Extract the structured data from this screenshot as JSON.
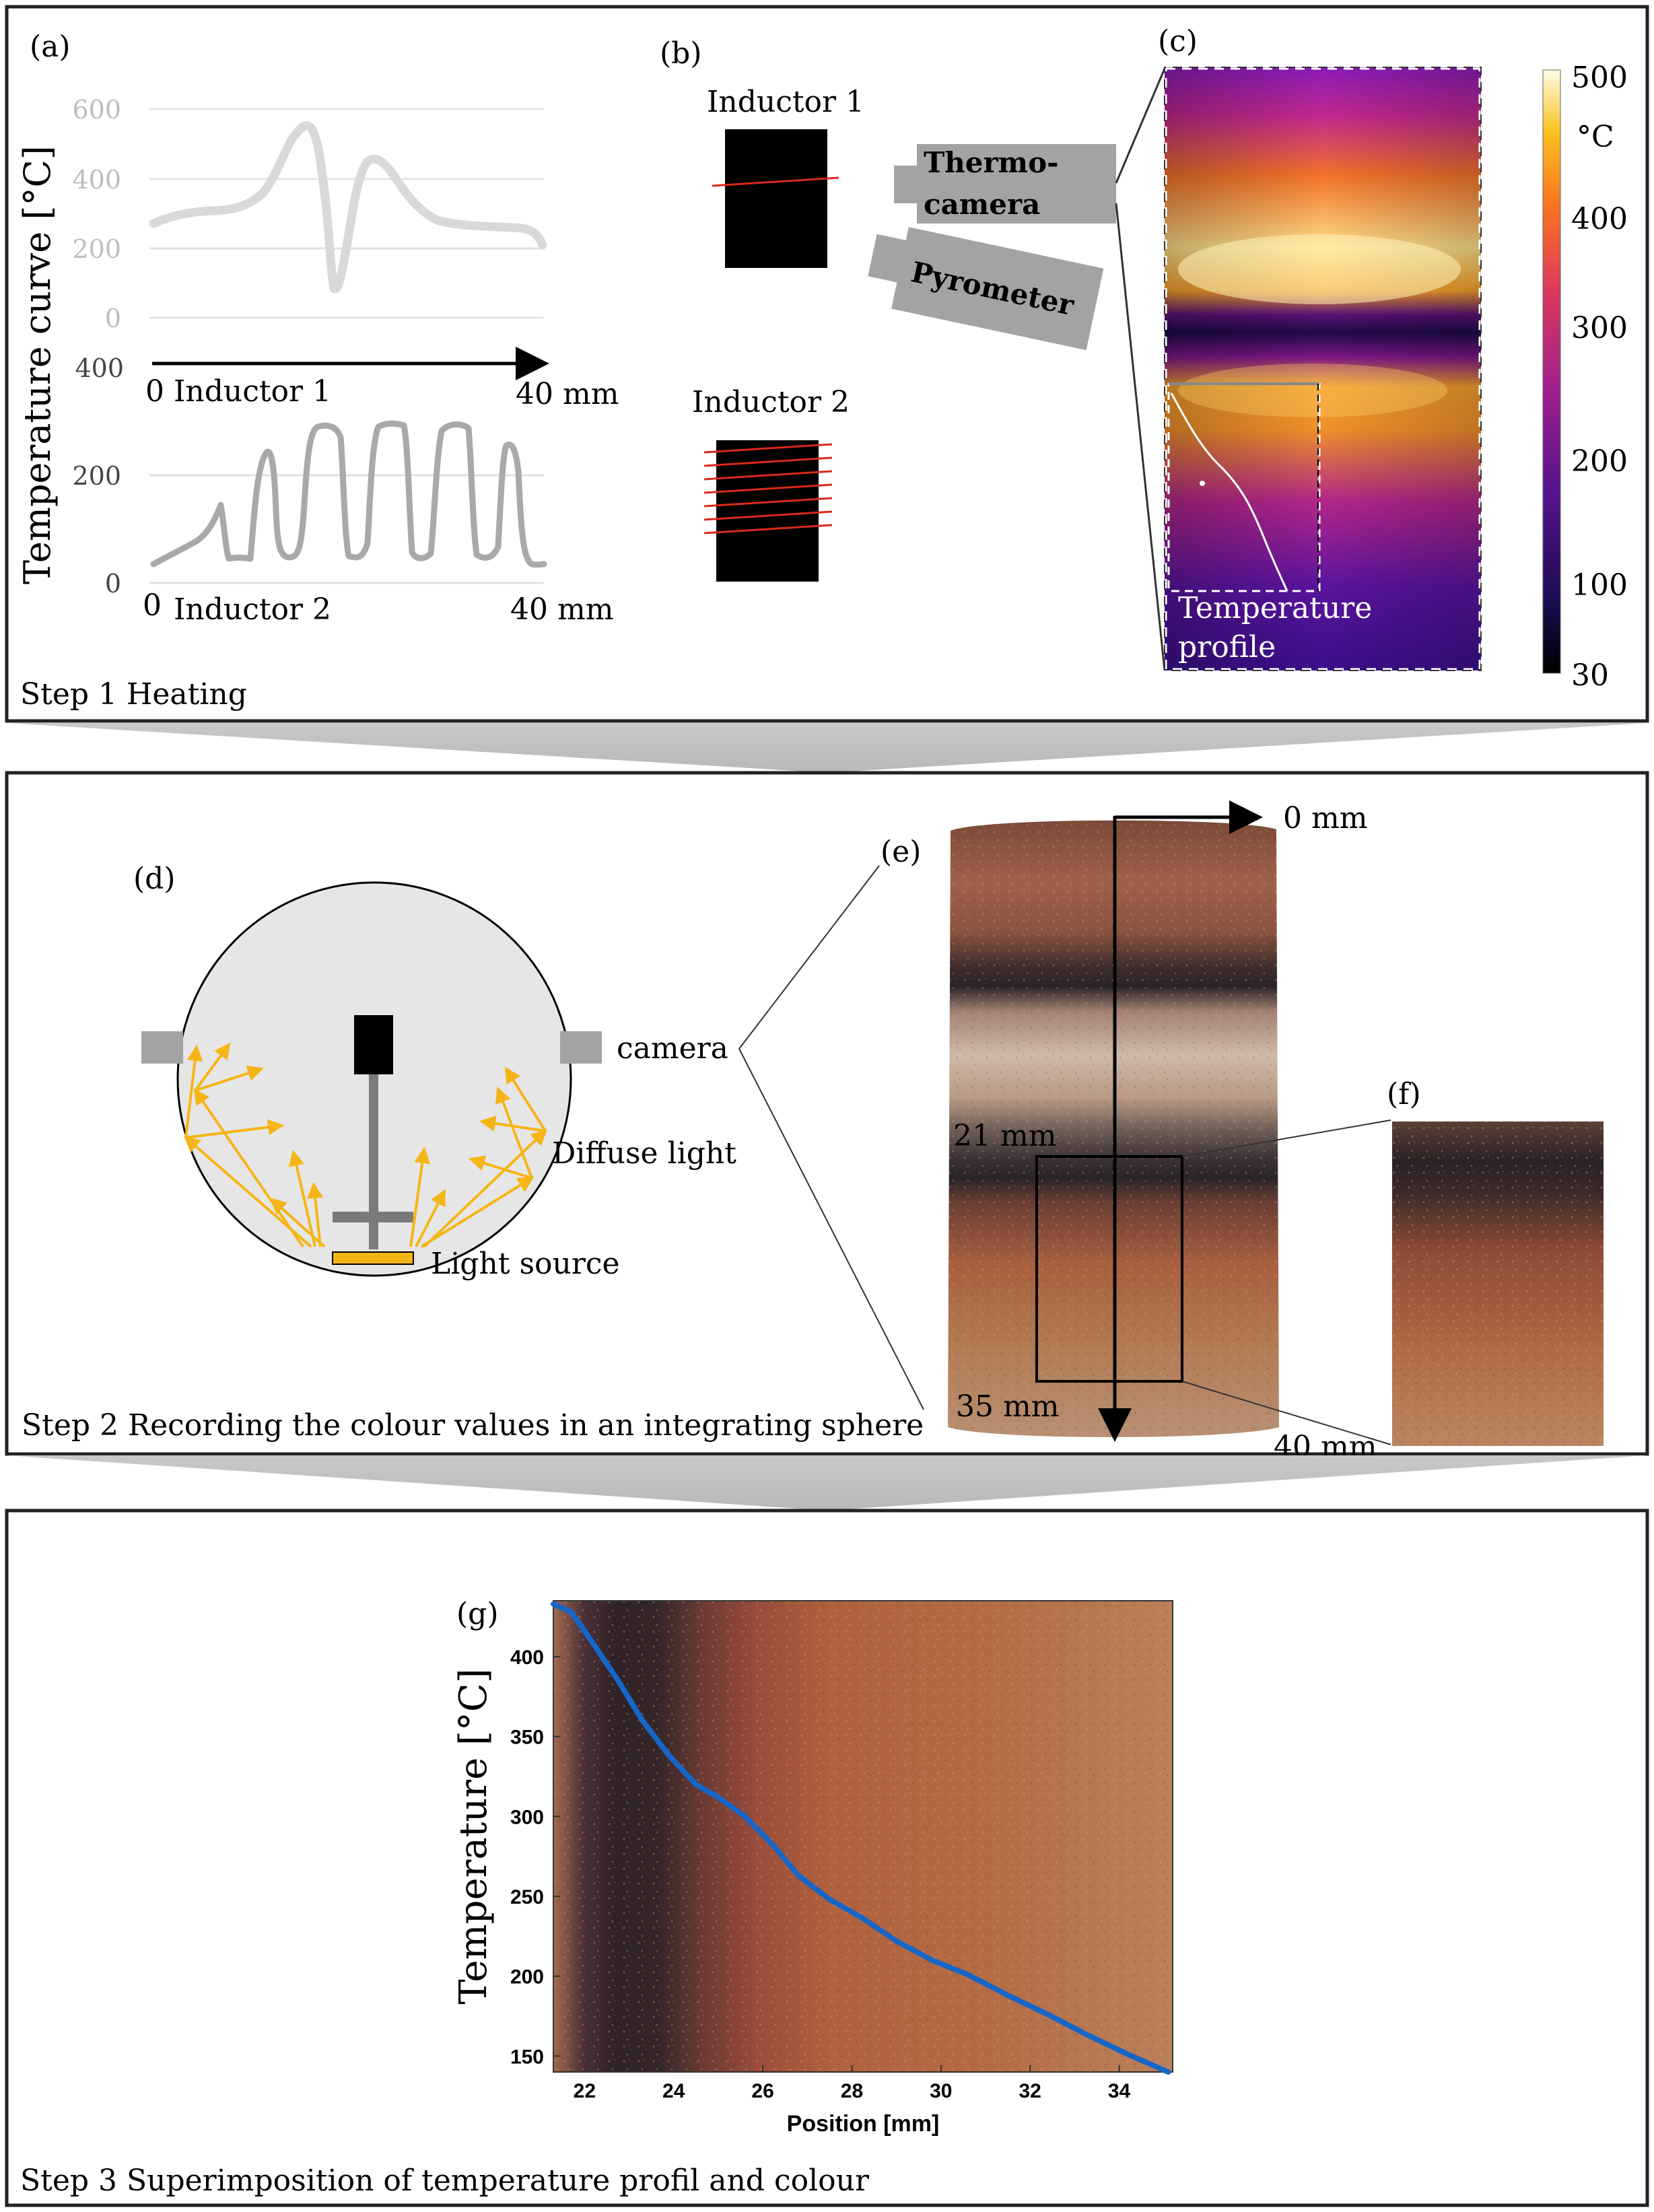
{
  "step1": {
    "caption": "Step 1 Heating",
    "panel_a": {
      "label": "(a)",
      "ylabel": "Temperature curve [°C]",
      "top_chart": {
        "yticks": [
          "600",
          "400",
          "200",
          "0"
        ],
        "x_start": "0",
        "name": "Inductor 1",
        "x_end": "40 mm"
      },
      "bottom_chart": {
        "yticks": [
          "400",
          "200",
          "0"
        ],
        "x_start": "0",
        "name": "Inductor 2",
        "x_end": "40 mm"
      }
    },
    "panel_b": {
      "label": "(b)",
      "inductor1": "Inductor 1",
      "inductor2": "Inductor 2",
      "thermocamera": [
        "Thermo-",
        "camera"
      ],
      "pyrometer": "Pyrometer"
    },
    "panel_c": {
      "label": "(c)",
      "profile_label": [
        "Temperature",
        "profile"
      ],
      "colorbar_unit": "°C",
      "colorbar_ticks": [
        "500",
        "400",
        "300",
        "200",
        "100",
        "30"
      ]
    }
  },
  "step2": {
    "caption": "Step 2 Recording the colour values in an integrating sphere",
    "panel_d": {
      "label": "(d)",
      "camera": "camera",
      "diffuse_light": "Diffuse light",
      "light_source": "Light source"
    },
    "panel_e": {
      "label": "(e)",
      "mark_top": "0 mm",
      "mark_21": "21 mm",
      "mark_35": "35 mm",
      "mark_40": "40 mm"
    },
    "panel_f": {
      "label": "(f)"
    }
  },
  "step3": {
    "caption": "Step 3 Superimposition of temperature profil and colour",
    "panel_g": {
      "label": "(g)"
    }
  },
  "chart_data": {
    "type": "line",
    "xlabel": "Position [mm]",
    "ylabel": "Temperature [°C]",
    "xlim": [
      21.3,
      35.2
    ],
    "ylim": [
      140,
      435
    ],
    "xticks": [
      22,
      24,
      26,
      28,
      30,
      32,
      34
    ],
    "yticks": [
      150,
      200,
      250,
      300,
      350,
      400
    ],
    "x": [
      21.3,
      21.7,
      22.2,
      22.8,
      23.3,
      23.9,
      24.5,
      25.0,
      25.6,
      26.2,
      26.8,
      27.5,
      28.2,
      29.0,
      29.8,
      30.6,
      31.5,
      32.4,
      33.3,
      34.2,
      35.1
    ],
    "y": [
      433,
      428,
      408,
      383,
      360,
      338,
      320,
      312,
      300,
      283,
      263,
      248,
      237,
      222,
      210,
      201,
      188,
      176,
      163,
      151,
      140
    ],
    "line_color": "#1666c8"
  }
}
